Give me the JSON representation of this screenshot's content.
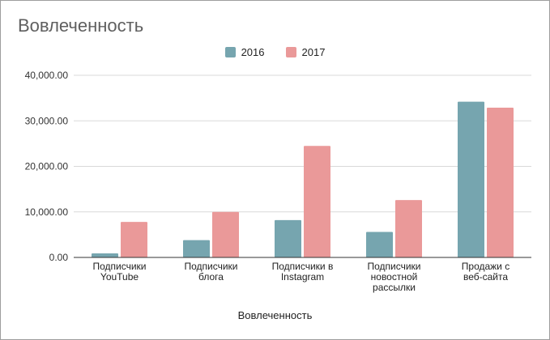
{
  "chart_data": {
    "type": "bar",
    "title": "Вовлеченность",
    "xlabel": "Вовлеченность",
    "ylabel": "",
    "ylim": [
      0,
      40000
    ],
    "yticks": [
      "0.00",
      "10,000.00",
      "20,000.00",
      "30,000.00",
      "40,000.00"
    ],
    "ytick_values": [
      0,
      10000,
      20000,
      30000,
      40000
    ],
    "grid": true,
    "legend_position": "top-center",
    "categories": [
      [
        "Подписчики",
        "YouTube"
      ],
      [
        "Подписчики",
        "блога"
      ],
      [
        "Подписчики в",
        "Instagram"
      ],
      [
        "Подписчики",
        "новостной",
        "рассылки"
      ],
      [
        "Продажи с",
        "веб-сайта"
      ]
    ],
    "series": [
      {
        "name": "2016",
        "color": "#76a5af",
        "values": [
          900,
          3800,
          8200,
          5600,
          34200
        ]
      },
      {
        "name": "2017",
        "color": "#ea9999",
        "values": [
          7800,
          10000,
          24500,
          12600,
          32900
        ]
      }
    ]
  }
}
